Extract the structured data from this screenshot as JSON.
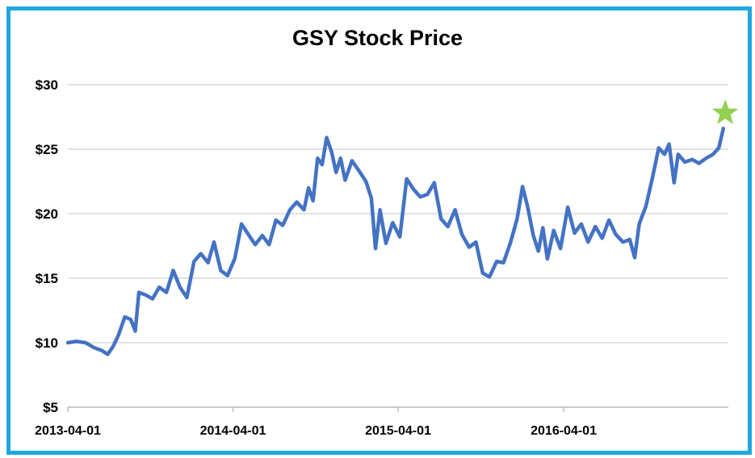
{
  "chart_data": {
    "type": "line",
    "title": "GSY Stock Price",
    "xlabel": "",
    "ylabel": "",
    "y_ticks": [
      "$5",
      "$10",
      "$15",
      "$20",
      "$25",
      "$30"
    ],
    "y_tick_values": [
      5,
      10,
      15,
      20,
      25,
      30
    ],
    "ylim": [
      5,
      30
    ],
    "x_ticks": [
      "2013-04-01",
      "2014-04-01",
      "2015-04-01",
      "2016-04-01"
    ],
    "xlim": [
      "2013-04-01",
      "2017-03-31"
    ],
    "grid": true,
    "legend": "none",
    "series": [
      {
        "color": "#4472c4",
        "points": [
          [
            "2013-04-01",
            10.0
          ],
          [
            "2013-04-20",
            10.1
          ],
          [
            "2013-05-10",
            10.0
          ],
          [
            "2013-05-30",
            9.6
          ],
          [
            "2013-06-15",
            9.4
          ],
          [
            "2013-06-28",
            9.1
          ],
          [
            "2013-07-10",
            9.7
          ],
          [
            "2013-07-22",
            10.6
          ],
          [
            "2013-08-05",
            12.0
          ],
          [
            "2013-08-18",
            11.8
          ],
          [
            "2013-08-28",
            10.9
          ],
          [
            "2013-09-05",
            13.9
          ],
          [
            "2013-09-20",
            13.7
          ],
          [
            "2013-10-05",
            13.4
          ],
          [
            "2013-10-20",
            14.3
          ],
          [
            "2013-11-05",
            13.9
          ],
          [
            "2013-11-20",
            15.6
          ],
          [
            "2013-12-05",
            14.3
          ],
          [
            "2013-12-20",
            13.5
          ],
          [
            "2014-01-05",
            16.3
          ],
          [
            "2014-01-20",
            16.9
          ],
          [
            "2014-02-05",
            16.2
          ],
          [
            "2014-02-18",
            17.8
          ],
          [
            "2014-03-05",
            15.6
          ],
          [
            "2014-03-20",
            15.2
          ],
          [
            "2014-04-05",
            16.5
          ],
          [
            "2014-04-20",
            19.2
          ],
          [
            "2014-05-05",
            18.4
          ],
          [
            "2014-05-20",
            17.6
          ],
          [
            "2014-06-05",
            18.3
          ],
          [
            "2014-06-20",
            17.6
          ],
          [
            "2014-07-05",
            19.5
          ],
          [
            "2014-07-20",
            19.1
          ],
          [
            "2014-08-05",
            20.3
          ],
          [
            "2014-08-20",
            20.9
          ],
          [
            "2014-09-05",
            20.3
          ],
          [
            "2014-09-15",
            22.0
          ],
          [
            "2014-09-25",
            21.0
          ],
          [
            "2014-10-05",
            24.3
          ],
          [
            "2014-10-15",
            23.8
          ],
          [
            "2014-10-25",
            25.9
          ],
          [
            "2014-11-05",
            24.8
          ],
          [
            "2014-11-15",
            23.2
          ],
          [
            "2014-11-25",
            24.3
          ],
          [
            "2014-12-05",
            22.6
          ],
          [
            "2014-12-20",
            24.1
          ],
          [
            "2015-01-05",
            23.3
          ],
          [
            "2015-01-20",
            22.5
          ],
          [
            "2015-02-01",
            21.2
          ],
          [
            "2015-02-10",
            17.3
          ],
          [
            "2015-02-20",
            20.3
          ],
          [
            "2015-03-05",
            17.7
          ],
          [
            "2015-03-20",
            19.3
          ],
          [
            "2015-04-05",
            18.2
          ],
          [
            "2015-04-20",
            22.7
          ],
          [
            "2015-05-05",
            21.9
          ],
          [
            "2015-05-20",
            21.3
          ],
          [
            "2015-06-05",
            21.5
          ],
          [
            "2015-06-20",
            22.4
          ],
          [
            "2015-07-05",
            19.6
          ],
          [
            "2015-07-20",
            19.0
          ],
          [
            "2015-08-05",
            20.3
          ],
          [
            "2015-08-20",
            18.4
          ],
          [
            "2015-09-05",
            17.4
          ],
          [
            "2015-09-20",
            17.8
          ],
          [
            "2015-10-05",
            15.4
          ],
          [
            "2015-10-20",
            15.1
          ],
          [
            "2015-11-05",
            16.3
          ],
          [
            "2015-11-20",
            16.2
          ],
          [
            "2015-12-05",
            17.7
          ],
          [
            "2015-12-20",
            19.6
          ],
          [
            "2016-01-01",
            22.1
          ],
          [
            "2016-01-12",
            20.6
          ],
          [
            "2016-01-25",
            18.3
          ],
          [
            "2016-02-05",
            17.1
          ],
          [
            "2016-02-15",
            18.9
          ],
          [
            "2016-02-25",
            16.5
          ],
          [
            "2016-03-10",
            18.7
          ],
          [
            "2016-03-25",
            17.3
          ],
          [
            "2016-04-10",
            20.5
          ],
          [
            "2016-04-25",
            18.5
          ],
          [
            "2016-05-10",
            19.2
          ],
          [
            "2016-05-25",
            17.8
          ],
          [
            "2016-06-10",
            19.0
          ],
          [
            "2016-06-25",
            18.1
          ],
          [
            "2016-07-10",
            19.5
          ],
          [
            "2016-07-25",
            18.4
          ],
          [
            "2016-08-10",
            17.8
          ],
          [
            "2016-08-25",
            18.0
          ],
          [
            "2016-09-05",
            16.6
          ],
          [
            "2016-09-15",
            19.2
          ],
          [
            "2016-09-30",
            20.6
          ],
          [
            "2016-10-15",
            22.9
          ],
          [
            "2016-10-28",
            25.1
          ],
          [
            "2016-11-10",
            24.6
          ],
          [
            "2016-11-20",
            25.4
          ],
          [
            "2016-12-01",
            22.4
          ],
          [
            "2016-12-10",
            24.6
          ],
          [
            "2016-12-25",
            24.0
          ],
          [
            "2017-01-10",
            24.2
          ],
          [
            "2017-01-25",
            23.9
          ],
          [
            "2017-02-10",
            24.3
          ],
          [
            "2017-02-25",
            24.6
          ],
          [
            "2017-03-10",
            25.1
          ],
          [
            "2017-03-20",
            26.6
          ]
        ]
      }
    ],
    "marker": {
      "date": "2017-03-24",
      "value": 27.8,
      "shape": "star",
      "color": "#92d050"
    }
  }
}
